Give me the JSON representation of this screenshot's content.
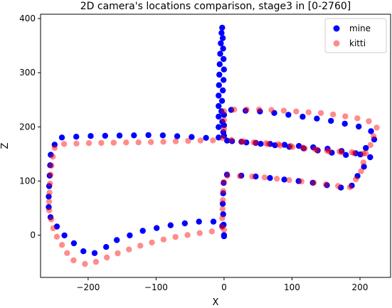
{
  "chart_data": {
    "type": "scatter",
    "title": "2D camera's locations comparison, stage3 in [0-2760]",
    "xlabel": "X",
    "ylabel": "Z",
    "xlim": [
      -270,
      245
    ],
    "ylim": [
      -78,
      408
    ],
    "xticks": [
      -200,
      -100,
      0,
      100,
      200
    ],
    "yticks": [
      0,
      100,
      200,
      300,
      400
    ],
    "grid": false,
    "legend": "top-right",
    "series": [
      {
        "name": "mine",
        "color": "#0000ff",
        "alpha": 1.0,
        "path": [
          [
            0,
            -2
          ],
          [
            -2,
            8
          ],
          [
            -3,
            25
          ],
          [
            -40,
            25
          ],
          [
            -80,
            18
          ],
          [
            -120,
            8
          ],
          [
            -160,
            -10
          ],
          [
            -183,
            -30
          ],
          [
            -200,
            -37
          ],
          [
            -240,
            5
          ],
          [
            -258,
            38
          ],
          [
            -258,
            75
          ],
          [
            -255,
            150
          ],
          [
            -245,
            180
          ],
          [
            -200,
            183
          ],
          [
            -100,
            185
          ],
          [
            -30,
            180
          ],
          [
            -8,
            178
          ],
          [
            -8,
            260
          ],
          [
            -6,
            330
          ],
          [
            -3,
            388
          ],
          [
            -2,
            365
          ],
          [
            0,
            300
          ],
          [
            -4,
            230
          ],
          [
            0,
            175
          ],
          [
            50,
            170
          ],
          [
            100,
            166
          ],
          [
            150,
            160
          ],
          [
            200,
            150
          ],
          [
            225,
            182
          ],
          [
            212,
            197
          ],
          [
            150,
            213
          ],
          [
            60,
            228
          ],
          [
            0,
            232
          ],
          [
            0,
            205
          ],
          [
            0,
            175
          ],
          [
            60,
            168
          ],
          [
            120,
            160
          ],
          [
            180,
            148
          ],
          [
            215,
            150
          ],
          [
            215,
            143
          ],
          [
            195,
            107
          ],
          [
            185,
            85
          ],
          [
            130,
            97
          ],
          [
            50,
            108
          ],
          [
            0,
            112
          ],
          [
            -2,
            60
          ],
          [
            0,
            0
          ]
        ],
        "samples": 112
      },
      {
        "name": "kitti",
        "color": "#ff0000",
        "alpha": 0.45,
        "path": [
          [
            0,
            10
          ],
          [
            -30,
            5
          ],
          [
            -80,
            -5
          ],
          [
            -120,
            -18
          ],
          [
            -160,
            -35
          ],
          [
            -200,
            -55
          ],
          [
            -225,
            -45
          ],
          [
            -250,
            5
          ],
          [
            -258,
            50
          ],
          [
            -255,
            120
          ],
          [
            -250,
            160
          ],
          [
            -245,
            168
          ],
          [
            -200,
            170
          ],
          [
            -100,
            172
          ],
          [
            -30,
            175
          ],
          [
            -3,
            175
          ],
          [
            0,
            190
          ],
          [
            0,
            232
          ],
          [
            60,
            232
          ],
          [
            150,
            225
          ],
          [
            210,
            213
          ],
          [
            225,
            200
          ],
          [
            215,
            165
          ],
          [
            208,
            150
          ],
          [
            150,
            155
          ],
          [
            80,
            166
          ],
          [
            10,
            176
          ],
          [
            10,
            174
          ],
          [
            80,
            168
          ],
          [
            150,
            156
          ],
          [
            205,
            152
          ],
          [
            205,
            125
          ],
          [
            195,
            105
          ],
          [
            185,
            88
          ],
          [
            130,
            97
          ],
          [
            50,
            108
          ],
          [
            0,
            110
          ],
          [
            -2,
            60
          ],
          [
            -3,
            15
          ]
        ],
        "samples": 102
      }
    ]
  }
}
